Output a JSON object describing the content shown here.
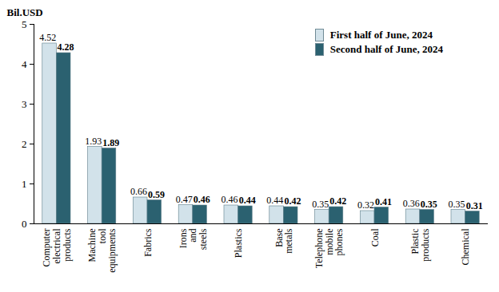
{
  "chart_data": {
    "type": "bar",
    "y_label": "Bil.USD",
    "categories": [
      "Computer electrical products",
      "Machine tool equipments",
      "Fabrics",
      "Irons and steels",
      "Plastics",
      "Base metals",
      "Telephone mobile phones",
      "Coal",
      "Plastic products",
      "Chemical"
    ],
    "series": [
      {
        "name": "First half of June, 2024",
        "color": "#d2e2ea",
        "values": [
          4.52,
          1.93,
          0.66,
          0.47,
          0.46,
          0.44,
          0.35,
          0.32,
          0.36,
          0.35
        ]
      },
      {
        "name": "Second half of June, 2024",
        "color": "#2b6170",
        "values": [
          4.28,
          1.89,
          0.59,
          0.46,
          0.44,
          0.42,
          0.42,
          0.41,
          0.35,
          0.31
        ]
      }
    ],
    "ylim": [
      0,
      5
    ],
    "yticks": [
      0,
      1,
      2,
      3,
      4,
      5
    ],
    "grid": false,
    "data_labels": true,
    "legend": "top-right"
  }
}
